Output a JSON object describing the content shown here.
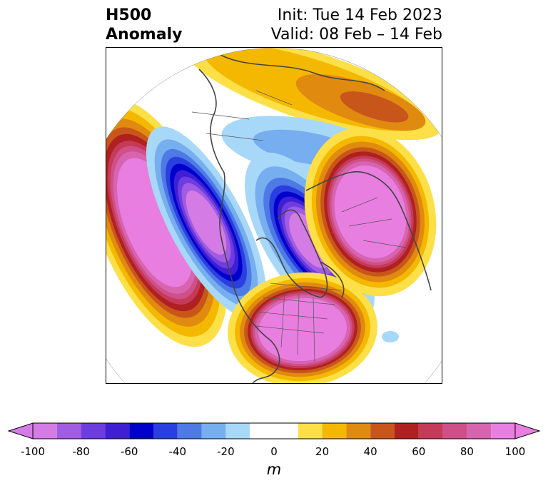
{
  "title": {
    "left": "H500\nAnomaly",
    "right_line1": "Init: Tue 14 Feb 2023",
    "right_line2": "Valid: 08 Feb – 14 Feb"
  },
  "colorbar": {
    "unit": "m",
    "ticks": [
      "-100",
      "-80",
      "-60",
      "-40",
      "-20",
      "0",
      "20",
      "40",
      "60",
      "80",
      "100"
    ],
    "tick_values": [
      -100,
      -80,
      -60,
      -40,
      -20,
      0,
      20,
      40,
      60,
      80,
      100
    ],
    "levels": [
      -100,
      -90,
      -80,
      -70,
      -60,
      -50,
      -40,
      -30,
      -20,
      -10,
      10,
      20,
      30,
      40,
      50,
      60,
      70,
      80,
      90,
      100
    ],
    "colors": [
      "#d47be6",
      "#a05ce3",
      "#6e3ddf",
      "#3e1fd4",
      "#0000cc",
      "#2a3fe0",
      "#4e7ae6",
      "#76aef0",
      "#a8d8f8",
      "#ffffff",
      "#fde047",
      "#f5b800",
      "#e08a10",
      "#c8561a",
      "#b02020",
      "#c43a58",
      "#cf5088",
      "#d864b0",
      "#e87ee0"
    ],
    "extend_min_color": "#d47be6",
    "extend_max_color": "#e87ee0"
  },
  "map": {
    "projection": "polar-stereographic",
    "anomalies": [
      {
        "region": "north-pacific",
        "sign": "positive",
        "peak": 100
      },
      {
        "region": "western-north-america",
        "sign": "negative",
        "peak": -100
      },
      {
        "region": "greenland",
        "sign": "negative",
        "peak": -100
      },
      {
        "region": "europe",
        "sign": "positive",
        "peak": 100
      },
      {
        "region": "eastern-north-america",
        "sign": "positive",
        "peak": 100
      },
      {
        "region": "eastern-siberia",
        "sign": "positive",
        "peak": 60
      },
      {
        "region": "arctic-russia",
        "sign": "negative",
        "peak": -30
      }
    ]
  }
}
